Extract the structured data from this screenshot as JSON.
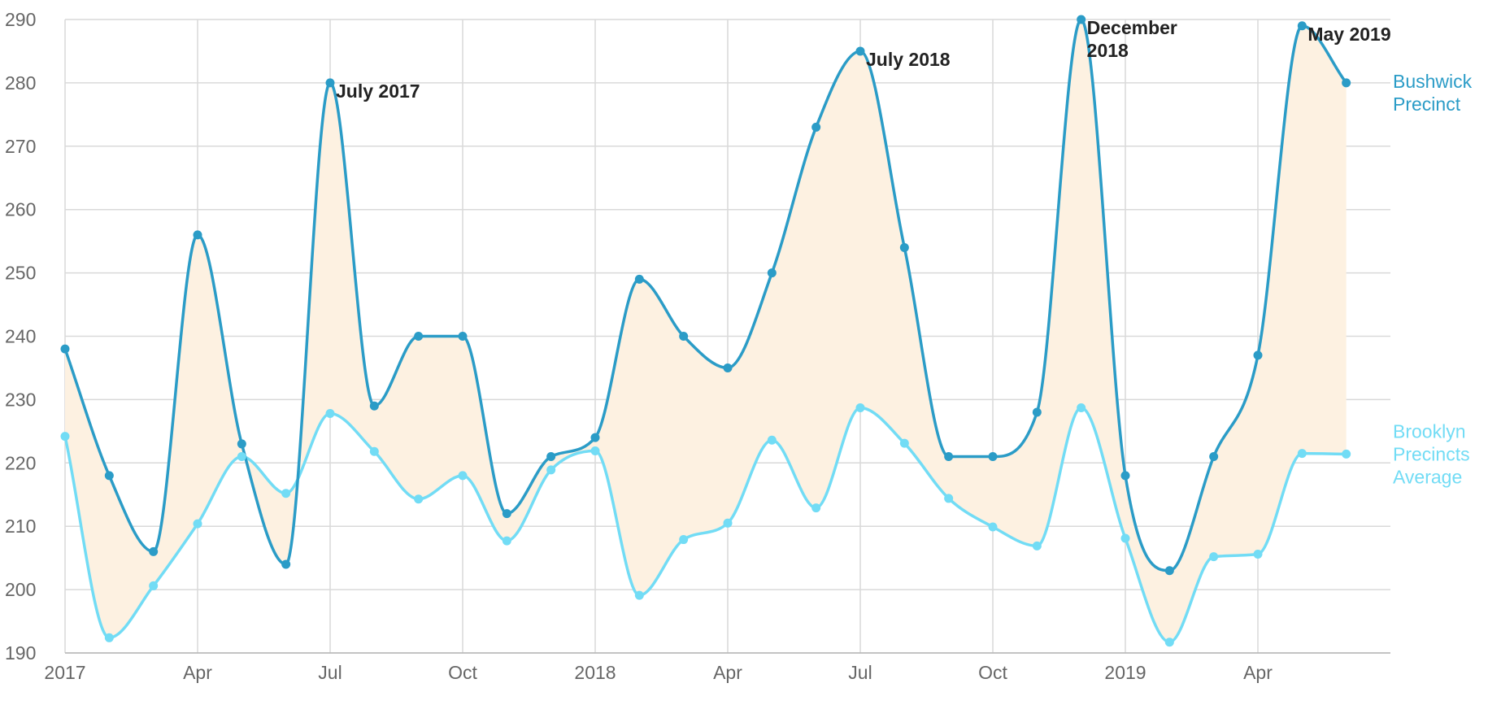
{
  "chart_data": {
    "type": "line",
    "title": "",
    "xlabel": "",
    "ylabel": "",
    "x": [
      "2017-01",
      "2017-02",
      "2017-03",
      "2017-04",
      "2017-05",
      "2017-06",
      "2017-07",
      "2017-08",
      "2017-09",
      "2017-10",
      "2017-11",
      "2017-12",
      "2018-01",
      "2018-02",
      "2018-03",
      "2018-04",
      "2018-05",
      "2018-06",
      "2018-07",
      "2018-08",
      "2018-09",
      "2018-10",
      "2018-11",
      "2018-12",
      "2019-01",
      "2019-02",
      "2019-03",
      "2019-04",
      "2019-05",
      "2019-06"
    ],
    "xlim": [
      "2017-01",
      "2019-07"
    ],
    "x_ticks": [
      "2017",
      "Apr",
      "Jul",
      "Oct",
      "2018",
      "Apr",
      "Jul",
      "Oct",
      "2019",
      "Apr"
    ],
    "ylim": [
      190,
      290
    ],
    "y_ticks": [
      190,
      200,
      210,
      220,
      230,
      240,
      250,
      260,
      270,
      280,
      290
    ],
    "grid": true,
    "series": [
      {
        "name": "Bushwick Precinct",
        "label_lines": [
          "Bushwick",
          "Precinct"
        ],
        "color": "#2b9cc7",
        "values": [
          238,
          218,
          206,
          256,
          223,
          204,
          280,
          229,
          240,
          240,
          212,
          221,
          224,
          249,
          240,
          235,
          250,
          273,
          285,
          254,
          221,
          221,
          228,
          290,
          218,
          203,
          221,
          237,
          289,
          280
        ]
      },
      {
        "name": "Brooklyn Precincts Average",
        "label_lines": [
          "Brooklyn",
          "Precincts",
          "Average"
        ],
        "color": "#72dcf5",
        "values": [
          224.2,
          192.4,
          200.6,
          210.4,
          221,
          215.2,
          227.8,
          221.8,
          214.3,
          218,
          207.7,
          218.9,
          221.9,
          199.1,
          207.9,
          210.5,
          223.6,
          212.9,
          228.7,
          223.1,
          214.4,
          209.9,
          206.9,
          228.7,
          208.1,
          191.7,
          205.2,
          205.6,
          221.5,
          221.4
        ]
      }
    ],
    "fill_between": {
      "color": "#fdf1e1"
    },
    "annotations": [
      {
        "lines": [
          "July 2017"
        ],
        "series": 0,
        "index": 6
      },
      {
        "lines": [
          "July 2018"
        ],
        "series": 0,
        "index": 18
      },
      {
        "lines": [
          "December",
          "2018"
        ],
        "series": 0,
        "index": 23
      },
      {
        "lines": [
          "May 2019"
        ],
        "series": 0,
        "index": 28
      }
    ]
  }
}
